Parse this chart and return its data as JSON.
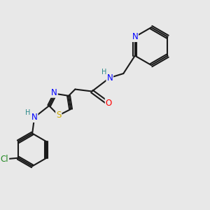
{
  "bg_color": "#e8e8e8",
  "bond_color": "#1a1a1a",
  "N_color": "#0000ff",
  "O_color": "#ff0000",
  "S_color": "#ccaa00",
  "Cl_color": "#228822",
  "H_color": "#2a8888",
  "line_width": 1.5,
  "font_size": 8.5,
  "xlim": [
    0,
    10
  ],
  "ylim": [
    0,
    10
  ]
}
